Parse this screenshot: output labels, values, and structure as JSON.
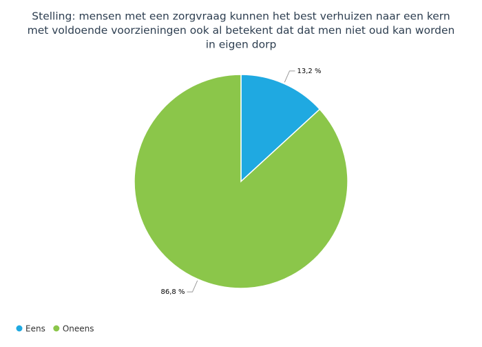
{
  "chart_data": {
    "type": "pie",
    "title": [
      "Stelling: mensen met een zorgvraag kunnen het best verhuizen naar een kern",
      "met voldoende voorzieningen ook al betekent dat dat men niet oud kan worden",
      "in eigen dorp"
    ],
    "categories": [
      "Eens",
      "Oneens"
    ],
    "values": [
      13.2,
      86.8
    ],
    "value_labels": [
      "13,2 %",
      "86,8 %"
    ],
    "colors": [
      "#1fa9e1",
      "#8bc64a"
    ],
    "legend": "bottom-left"
  }
}
